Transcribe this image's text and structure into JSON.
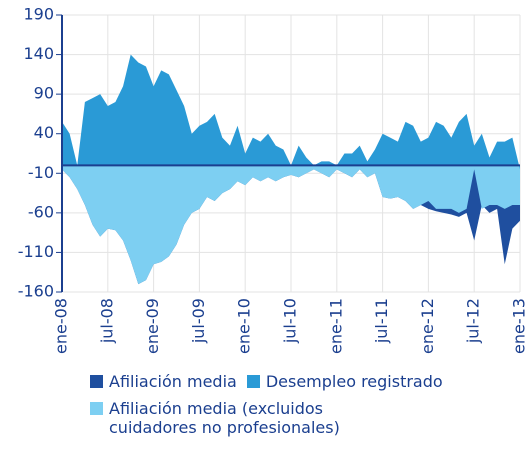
{
  "chart_data": {
    "type": "area",
    "categories": [
      "ene-08",
      null,
      null,
      null,
      null,
      null,
      "jul-08",
      null,
      null,
      null,
      null,
      null,
      "ene-09",
      null,
      null,
      null,
      null,
      null,
      "jul-09",
      null,
      null,
      null,
      null,
      null,
      "ene-10",
      null,
      null,
      null,
      null,
      null,
      "jul-10",
      null,
      null,
      null,
      null,
      null,
      "ene-11",
      null,
      null,
      null,
      null,
      null,
      "jul-11",
      null,
      null,
      null,
      null,
      null,
      "ene-12",
      null,
      null,
      null,
      null,
      null,
      "jul-12",
      null,
      null,
      null,
      null,
      null,
      "ene-13"
    ],
    "series": [
      {
        "name": "Afiliación media",
        "color": "#1f4f9f",
        "values": [
          -5,
          -15,
          -30,
          -50,
          -75,
          -90,
          -80,
          -82,
          -95,
          -120,
          -150,
          -145,
          -125,
          -122,
          -115,
          -100,
          -75,
          -60,
          -55,
          -40,
          -45,
          -35,
          -30,
          -20,
          -25,
          -15,
          -20,
          -15,
          -20,
          -15,
          -12,
          -15,
          -10,
          -5,
          -10,
          -15,
          -5,
          -10,
          -15,
          -5,
          -15,
          -10,
          -40,
          -42,
          -40,
          -45,
          -55,
          -50,
          -55,
          -58,
          -60,
          -62,
          -65,
          -60,
          -95,
          -50,
          -60,
          -55,
          -125,
          -80,
          -70
        ]
      },
      {
        "name": "Desempleo registrado",
        "color": "#2a9ad6",
        "values": [
          55,
          40,
          0,
          80,
          85,
          90,
          75,
          80,
          100,
          140,
          130,
          125,
          100,
          120,
          115,
          95,
          75,
          40,
          50,
          55,
          65,
          35,
          25,
          50,
          15,
          35,
          30,
          40,
          25,
          20,
          0,
          25,
          10,
          0,
          5,
          5,
          0,
          15,
          15,
          25,
          5,
          20,
          40,
          35,
          30,
          55,
          50,
          30,
          35,
          55,
          50,
          35,
          55,
          65,
          25,
          40,
          10,
          30,
          30,
          35,
          -5
        ]
      },
      {
        "name": "Afiliación media (excluidos cuidadores no profesionales)",
        "color": "#7dcff2",
        "values": [
          -5,
          -15,
          -30,
          -50,
          -75,
          -90,
          -80,
          -82,
          -95,
          -120,
          -150,
          -145,
          -125,
          -122,
          -115,
          -100,
          -75,
          -60,
          -55,
          -40,
          -45,
          -35,
          -30,
          -20,
          -25,
          -15,
          -20,
          -15,
          -20,
          -15,
          -12,
          -15,
          -10,
          -5,
          -10,
          -15,
          -5,
          -10,
          -15,
          -5,
          -15,
          -10,
          -40,
          -42,
          -40,
          -45,
          -55,
          -50,
          -45,
          -55,
          -55,
          -55,
          -60,
          -55,
          -5,
          -55,
          -50,
          -50,
          -55,
          -50,
          -50
        ]
      }
    ],
    "ylim": [
      -160,
      190
    ],
    "yticks": [
      -160,
      -110,
      -60,
      -10,
      40,
      90,
      140,
      190
    ],
    "grid": true
  }
}
